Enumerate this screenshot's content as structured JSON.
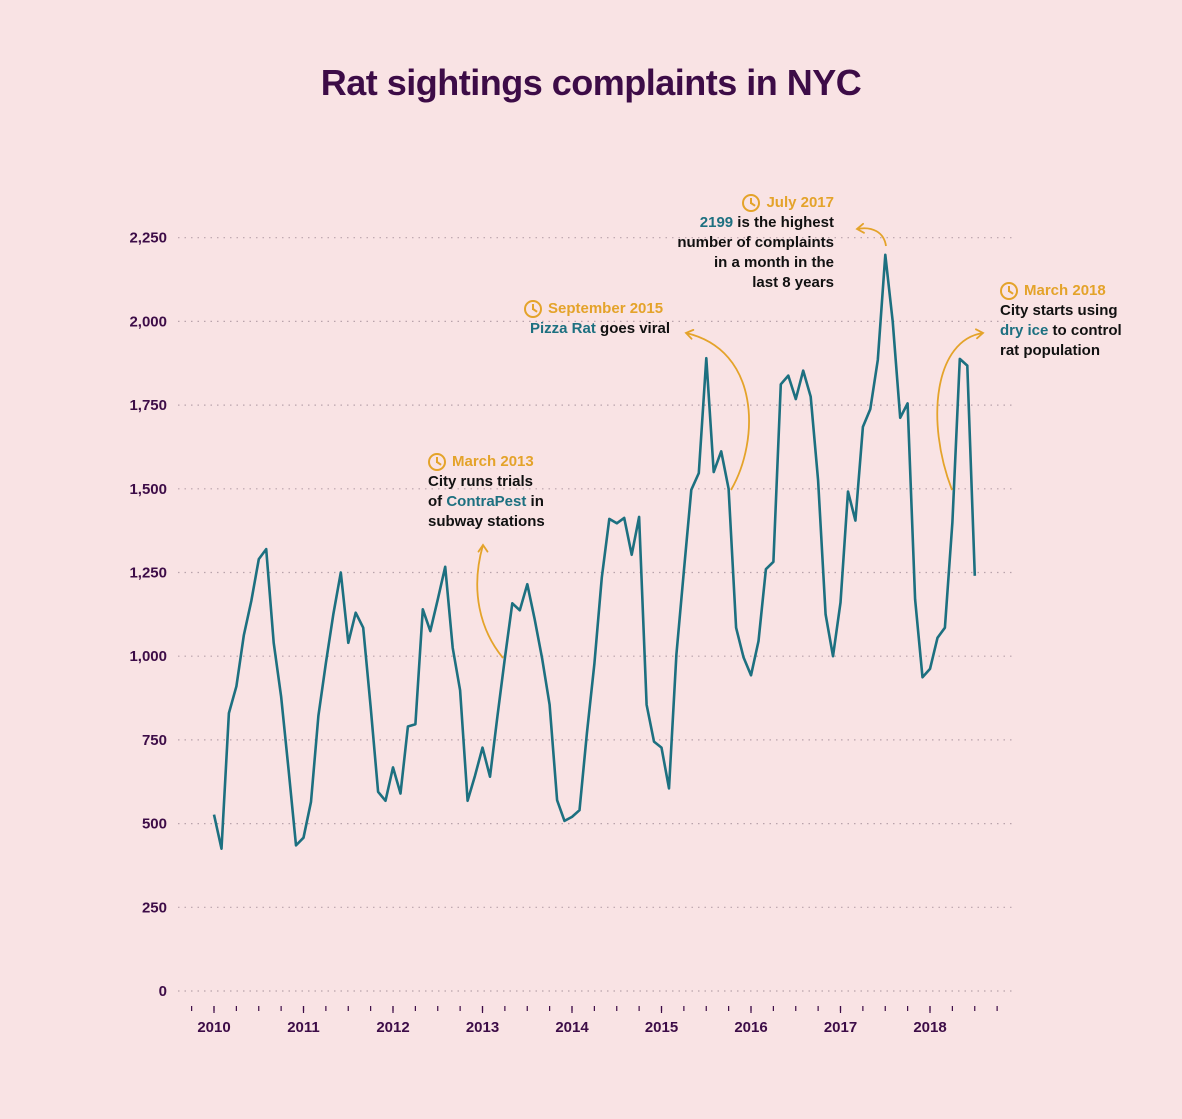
{
  "title": "Rat sightings complaints in NYC",
  "colors": {
    "background": "#f9e3e4",
    "line": "#1d7080",
    "accent": "#e4a32a",
    "text": "#3d0c47"
  },
  "icons": {
    "annotation_marker": "clock-icon"
  },
  "annotations": {
    "a2013": {
      "date": "March 2013",
      "line1": "City runs trials",
      "line2a": "of ",
      "hl": "ContraPest",
      "line2b": " in",
      "line3": "subway stations"
    },
    "a2015": {
      "date": "September 2015",
      "hl": "Pizza Rat",
      "rest": " goes viral"
    },
    "a2017": {
      "date": "July 2017",
      "hl": "2199",
      "line1b": " is the highest",
      "line2": "number of complaints",
      "line3": "in a month in the",
      "line4": "last 8 years"
    },
    "a2018": {
      "date": "March 2018",
      "line1": "City starts using",
      "hl": "dry ice",
      "line2b": " to control",
      "line3": "rat population"
    }
  },
  "chart_data": {
    "type": "line",
    "title": "Rat sightings complaints in NYC",
    "xlabel": "",
    "ylabel": "",
    "ylim": [
      0,
      2250
    ],
    "yticks": [
      0,
      250,
      500,
      750,
      1000,
      1250,
      1500,
      1750,
      2000,
      2250
    ],
    "ytick_labels": [
      "0",
      "250",
      "500",
      "750",
      "1,000",
      "1,250",
      "1,500",
      "1,750",
      "2,000",
      "2,250"
    ],
    "xticks": [
      "2010",
      "2011",
      "2012",
      "2013",
      "2014",
      "2015",
      "2016",
      "2017",
      "2018"
    ],
    "grid": "horizontal dotted",
    "series": [
      {
        "start": "2010-01",
        "values": [
          527,
          425,
          830,
          910,
          1062,
          1165,
          1290,
          1320,
          1040,
          880,
          660,
          435,
          458,
          565,
          822,
          980,
          1125,
          1250,
          1040,
          1130,
          1085,
          850,
          595,
          568,
          668,
          590,
          790,
          797,
          1140,
          1075,
          1170,
          1267,
          1025,
          898,
          568,
          643,
          727,
          640,
          820,
          995,
          1158,
          1137,
          1215,
          1110,
          992,
          855,
          570,
          508,
          520,
          540,
          770,
          978,
          1235,
          1410,
          1397,
          1413,
          1303,
          1416,
          855,
          745,
          727,
          605,
          1005,
          1255,
          1497,
          1547,
          1890,
          1550,
          1612,
          1500,
          1085,
          997,
          943,
          1045,
          1260,
          1282,
          1812,
          1838,
          1768,
          1853,
          1775,
          1525,
          1125,
          1000,
          1160,
          1492,
          1405,
          1685,
          1738,
          1885,
          2199,
          2000,
          1712,
          1755,
          1170,
          937,
          962,
          1055,
          1085,
          1400,
          1888,
          1868,
          1240
        ]
      }
    ]
  }
}
